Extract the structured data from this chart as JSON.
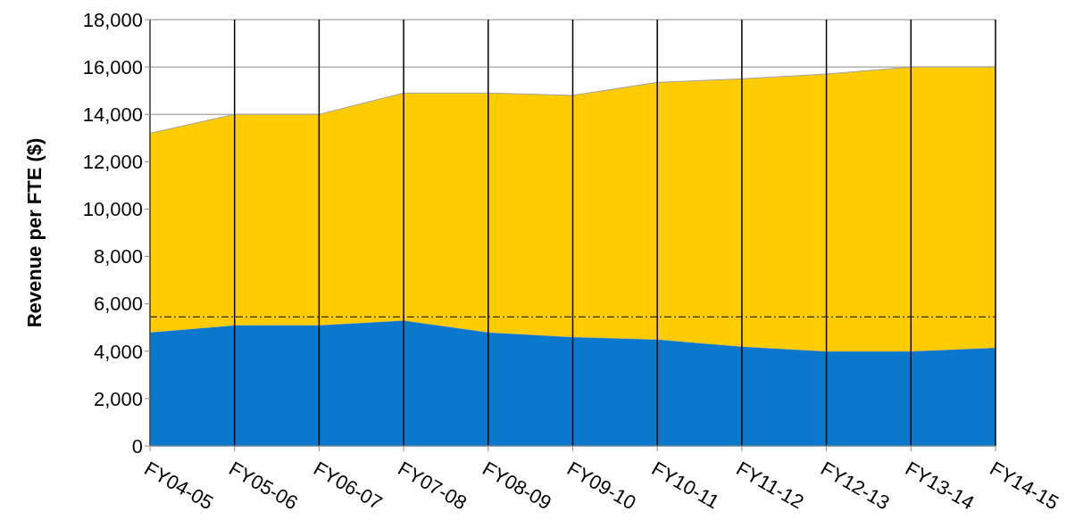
{
  "chart_data": {
    "type": "area",
    "stacked": true,
    "ylabel": "Revenue per FTE ($)",
    "categories": [
      "FY04-05",
      "FY05-06",
      "FY06-07",
      "FY07-08",
      "FY08-09",
      "FY09-10",
      "FY10-11",
      "FY11-12",
      "FY12-13",
      "FY13-14",
      "FY14-15"
    ],
    "series": [
      {
        "color": "#0a78cc",
        "values": [
          4800,
          5100,
          5100,
          5300,
          4800,
          4600,
          4500,
          4200,
          4000,
          4000,
          4150
        ]
      },
      {
        "color": "#ffcc00",
        "values": [
          8400,
          8900,
          8900,
          9600,
          10100,
          10200,
          10850,
          11300,
          11700,
          12000,
          11850
        ]
      }
    ],
    "ylim": [
      0,
      18000
    ],
    "yticks": [
      {
        "value": 0,
        "label": "0"
      },
      {
        "value": 2000,
        "label": "2,000"
      },
      {
        "value": 4000,
        "label": "4,000"
      },
      {
        "value": 6000,
        "label": "6,000"
      },
      {
        "value": 8000,
        "label": "8,000"
      },
      {
        "value": 10000,
        "label": "10,000"
      },
      {
        "value": 12000,
        "label": "12,000"
      },
      {
        "value": 14000,
        "label": "14,000"
      },
      {
        "value": 16000,
        "label": "16,000"
      },
      {
        "value": 18000,
        "label": "18,000"
      }
    ],
    "ref_lines": [
      {
        "axis": "y",
        "value": 5450,
        "color": "#000000",
        "line_style": "dashdot"
      }
    ],
    "grid": true
  }
}
